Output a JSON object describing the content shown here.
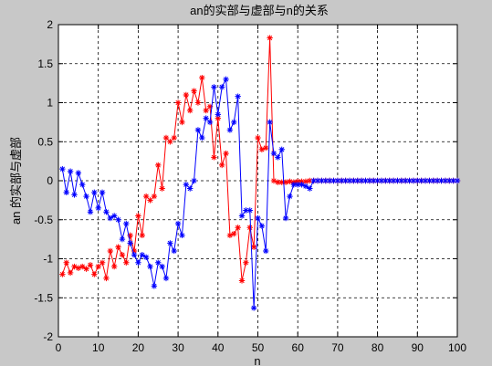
{
  "chart_data": {
    "type": "line",
    "title": "an的实部与虚部与n的关系",
    "xlabel": "n",
    "ylabel": "an 的实部与虚部",
    "xlim": [
      0,
      100
    ],
    "ylim": [
      -2,
      2
    ],
    "xticks": [
      0,
      10,
      20,
      30,
      40,
      50,
      60,
      70,
      80,
      90,
      100
    ],
    "yticks": [
      -2,
      -1.5,
      -1,
      -0.5,
      0,
      0.5,
      1,
      1.5,
      2
    ],
    "xtick_labels": [
      "0",
      "10",
      "20",
      "30",
      "40",
      "50",
      "60",
      "70",
      "80",
      "90",
      "100"
    ],
    "ytick_labels": [
      "-2",
      "-1.5",
      "-1",
      "-0.5",
      "0",
      "0.5",
      "1",
      "1.5",
      "2"
    ],
    "grid": true,
    "marker": "*",
    "series": [
      {
        "color": "#ff0000",
        "x": [
          1,
          2,
          3,
          4,
          5,
          6,
          7,
          8,
          9,
          10,
          11,
          12,
          13,
          14,
          15,
          16,
          17,
          18,
          19,
          20,
          21,
          22,
          23,
          24,
          25,
          26,
          27,
          28,
          29,
          30,
          31,
          32,
          33,
          34,
          35,
          36,
          37,
          38,
          39,
          40,
          41,
          42,
          43,
          44,
          45,
          46,
          47,
          48,
          49,
          50,
          51,
          52,
          53,
          54,
          55,
          56,
          57,
          58,
          59,
          60,
          61,
          62,
          63,
          64,
          65,
          66,
          67,
          68,
          69,
          70,
          71,
          72,
          73,
          74,
          75,
          76,
          77,
          78,
          79,
          80,
          81,
          82,
          83,
          84,
          85,
          86,
          87,
          88,
          89,
          90,
          91,
          92,
          93,
          94,
          95,
          96,
          97,
          98,
          99,
          100
        ],
        "y": [
          -1.2,
          -1.05,
          -1.18,
          -1.1,
          -1.12,
          -1.1,
          -1.13,
          -1.08,
          -1.2,
          -1.1,
          -1.05,
          -1.25,
          -0.9,
          -1.1,
          -0.85,
          -0.95,
          -1.05,
          -0.7,
          -0.9,
          -0.45,
          -0.7,
          -0.2,
          -0.25,
          -0.2,
          0.2,
          -0.1,
          0.55,
          0.5,
          0.55,
          1.0,
          0.75,
          1.1,
          0.9,
          1.15,
          1.0,
          1.32,
          0.9,
          0.95,
          0.3,
          0.8,
          0.2,
          0.35,
          -0.7,
          -0.68,
          -0.6,
          -1.28,
          -1.05,
          -0.6,
          -0.85,
          0.55,
          0.4,
          0.42,
          1.83,
          0.0,
          -0.02,
          -0.02,
          -0.02,
          -0.01,
          -0.02,
          -0.01,
          -0.01,
          -0.01,
          0.0,
          0.0,
          0.0,
          0.0,
          0.0,
          0.0,
          0.0,
          0.0,
          0.0,
          0.0,
          0.0,
          0.0,
          0.0,
          0.0,
          0.0,
          0.0,
          0.0,
          0.0,
          0.0,
          0.0,
          0.0,
          0.0,
          0.0,
          0.0,
          0.0,
          0.0,
          0.0,
          0.0,
          0.0,
          0.0,
          0.0,
          0.0,
          0.0,
          0.0,
          0.0,
          0.0,
          0.0,
          0.0
        ]
      },
      {
        "color": "#0000ff",
        "x": [
          1,
          2,
          3,
          4,
          5,
          6,
          7,
          8,
          9,
          10,
          11,
          12,
          13,
          14,
          15,
          16,
          17,
          18,
          19,
          20,
          21,
          22,
          23,
          24,
          25,
          26,
          27,
          28,
          29,
          30,
          31,
          32,
          33,
          34,
          35,
          36,
          37,
          38,
          39,
          40,
          41,
          42,
          43,
          44,
          45,
          46,
          47,
          48,
          49,
          50,
          51,
          52,
          53,
          54,
          55,
          56,
          57,
          58,
          59,
          60,
          61,
          62,
          63,
          64,
          65,
          66,
          67,
          68,
          69,
          70,
          71,
          72,
          73,
          74,
          75,
          76,
          77,
          78,
          79,
          80,
          81,
          82,
          83,
          84,
          85,
          86,
          87,
          88,
          89,
          90,
          91,
          92,
          93,
          94,
          95,
          96,
          97,
          98,
          99,
          100
        ],
        "y": [
          0.15,
          -0.15,
          0.12,
          -0.18,
          0.1,
          -0.05,
          -0.2,
          -0.4,
          -0.15,
          -0.35,
          -0.15,
          -0.4,
          -0.48,
          -0.45,
          -0.5,
          -0.75,
          -0.55,
          -0.8,
          -0.95,
          -1.05,
          -0.95,
          -0.98,
          -1.1,
          -1.35,
          -1.05,
          -1.1,
          -1.25,
          -0.8,
          -0.9,
          -0.55,
          -0.7,
          -0.05,
          -0.1,
          0.0,
          0.65,
          0.55,
          0.8,
          0.75,
          1.2,
          0.85,
          1.2,
          1.3,
          0.65,
          0.75,
          1.08,
          -0.45,
          -0.38,
          -0.38,
          -1.63,
          -0.48,
          -0.58,
          -0.9,
          0.75,
          0.35,
          0.3,
          0.4,
          -0.48,
          -0.2,
          -0.05,
          -0.05,
          -0.05,
          -0.07,
          -0.1,
          0.0,
          0.0,
          0.0,
          0.0,
          0.0,
          0.0,
          0.0,
          0.0,
          0.0,
          0.0,
          0.0,
          0.0,
          0.0,
          0.0,
          0.0,
          0.0,
          0.0,
          0.0,
          0.0,
          0.0,
          0.0,
          0.0,
          0.0,
          0.0,
          0.0,
          0.0,
          0.0,
          0.0,
          0.0,
          0.0,
          0.0,
          0.0,
          0.0,
          0.0,
          0.0,
          0.0,
          0.0
        ]
      }
    ]
  }
}
